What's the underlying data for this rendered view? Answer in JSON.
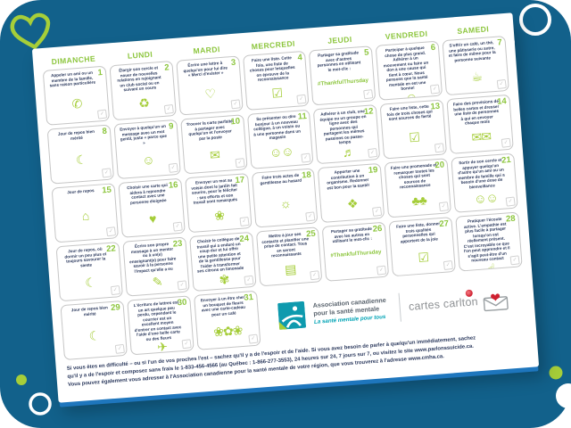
{
  "page": {
    "background_color": "#12618b",
    "accent_green": "#a6ce39",
    "card_edge_blue": "#1e76bd",
    "text_navy": "#2c3a5e",
    "brand_teal": "#00a3b5",
    "brand_red": "#cf2030"
  },
  "calendar": {
    "day_headers": [
      "DIMANCHE",
      "LUNDI",
      "MARDI",
      "MERCREDI",
      "JEUDI",
      "VENDREDI",
      "SAMEDI"
    ],
    "days": [
      {
        "num": "1",
        "text": "Appeler un ami ou un membre de la famille, sans raison particulière",
        "icon": "✆",
        "icon_name": "phone-heart-icon"
      },
      {
        "num": "2",
        "text": "Élargir son cercle et nouer de nouvelles relations en rejoignant un club social ou en suivant un cours",
        "icon": "♻",
        "icon_name": "people-circle-icon"
      },
      {
        "num": "3",
        "text": "Écrire une lettre à quelqu'un pour lui dire « Merci d'exister »",
        "icon": "♡",
        "icon_name": "hand-heart-icon"
      },
      {
        "num": "4",
        "text": "Faire une liste. Cette fois, une liste de choses pour lesquelles on éprouve de la reconnaissance",
        "icon": "☑",
        "icon_name": "clipboard-check-icon"
      },
      {
        "num": "5",
        "text": "Partager sa gratitude avec d'autres personnes en utilisant le mot-clic :",
        "hashtag": "#ThankfulThursday",
        "icon": "",
        "icon_name": "hashtag-label"
      },
      {
        "num": "6",
        "text": "Participer à quelque chose de plus grand. Adhérer à un mouvement ou faire un don à une cause qui tient à cœur. Nous pensons que la santé mentale en est une bonne!",
        "icon": "☺",
        "icon_name": "friends-support-icon"
      },
      {
        "num": "7",
        "text": "S'offrir un café, un thé, une pâtisserie ou autre, et faire de même pour la personne suivante",
        "icon": "☕",
        "icon_name": "coffee-cup-icon"
      },
      {
        "num": "8",
        "text": "Jour de repos bien mérité",
        "icon": "☾",
        "icon_name": "resting-person-icon"
      },
      {
        "num": "9",
        "text": "Envoyer à quelqu'un un message avec un mot gentil, juste « parce que »",
        "icon": "☺",
        "icon_name": "phone-smiley-icon"
      },
      {
        "num": "10",
        "text": "Trouver la carte parfaite à partager avec quelqu'un et l'envoyer par la poste",
        "icon": "✉",
        "icon_name": "envelope-heart-icon"
      },
      {
        "num": "11",
        "text": "Se présenter ou dire bonjour à un nouveau collègue, à un voisin ou à une personne dans un magasin",
        "icon": "☺☺",
        "icon_name": "greeting-people-icon"
      },
      {
        "num": "12",
        "text": "Adhérer à un club, une équipe ou un groupe en ligne avec des personnes qui partagent les mêmes passions ou passe-temps",
        "icon": "♬",
        "icon_name": "guitar-icon"
      },
      {
        "num": "13",
        "text": "Faire une liste, cette fois de trois choses qui sont sources de fierté",
        "icon": "☑",
        "icon_name": "checklist-icon"
      },
      {
        "num": "14",
        "text": "Faire des provisions de belles cartes et dresser une liste de personnes à qui en envoyer chaque mois",
        "icon": "✉✉",
        "icon_name": "envelopes-stack-icon"
      },
      {
        "num": "15",
        "text": "Jour de repos",
        "icon": "⌂",
        "icon_name": "sofa-icon"
      },
      {
        "num": "16",
        "text": "Choisir une carte qui aidera à reprendre contact avec une personne éloignée",
        "icon": "♥",
        "icon_name": "greeting-card-icon"
      },
      {
        "num": "17",
        "text": "Envoyer un mot au voisin dont le jardin fait sourire, pour le féliciter : ses efforts et son travail sont remarqués",
        "icon": "❀",
        "icon_name": "watering-can-icon"
      },
      {
        "num": "18",
        "text": "Faire trois actes de gentillesse au hasard",
        "icon": "☼",
        "icon_name": "cheering-person-icon"
      },
      {
        "num": "19",
        "text": "Apporter une contribution à un organisme. Redonner est bon pour la santé!",
        "icon": "❖",
        "icon_name": "gift-box-icon"
      },
      {
        "num": "20",
        "text": "Faire une promenade et remarquer toutes les choses qui sont sources de reconnaissance",
        "icon": "♣♣",
        "icon_name": "trees-icon"
      },
      {
        "num": "21",
        "text": "Sortir de son cercle et appuyer quelqu'un d'autre qu'un ami ou un membre de famille qui a besoin d'une dose de bienveillance",
        "icon": "☺☺",
        "icon_name": "helping-people-icon"
      },
      {
        "num": "22",
        "text": "Jour de repos, où dormir un peu plus et toujours savourer la sieste",
        "icon": "☾",
        "icon_name": "lying-person-icon"
      },
      {
        "num": "23",
        "text": "Écrire son propre message à un mentor ou à un(e) enseignant(e) pour faire savoir à la personne l'impact qu'elle a eu",
        "icon": "✎",
        "icon_name": "writing-person-icon"
      },
      {
        "num": "24",
        "text": "Choisir le collègue de travail qui a enduré un coup dur et lui offrir une petite attention et de la gentillesse pour l'aider à transformer ses citrons en limonade",
        "icon": "✾",
        "icon_name": "lemons-icon"
      },
      {
        "num": "25",
        "text": "Mettre à jour ses contacts et planifier une prise de contact. Tous en seront reconnaissants",
        "icon": "▤",
        "icon_name": "address-book-icon"
      },
      {
        "num": "26",
        "text": "Partager sa gratitude avec les autres en utilisant le mot-clic :",
        "hashtag": "#ThankfulThursday",
        "icon": "",
        "icon_name": "hashtag-label"
      },
      {
        "num": "27",
        "text": "Faire une liste, donner trois qualités personnelles qui apportent de la joie",
        "icon": "☑",
        "icon_name": "checklist-pencil-icon"
      },
      {
        "num": "28",
        "text": "Pratiquer l'écoute active. L'empathie est plus facile à partager lorsqu'on est réellement présent. C'est incroyable ce que l'on peut apprendre et il s'agit peut-être d'un nouveau contact",
        "icon": "☝",
        "icon_name": "listening-icon"
      },
      {
        "num": "29",
        "text": "Jour de repos bien mérité",
        "icon": "☾",
        "icon_name": "relaxing-person-icon"
      },
      {
        "num": "30",
        "text": "L'écriture de lettres est un art quelque peu perdu, cependant le courrier est un excellent moyen d'entrer en contact avec l'aide d'une belle carte ou des fleurs",
        "icon": "✈",
        "icon_name": "paper-plane-icon"
      },
      {
        "num": "31",
        "text": "Envoyer à un être cher un bouquet de fleurs avec une carte-cadeau pour un café",
        "icon": "❀✿❀",
        "icon_name": "flowers-icon"
      }
    ],
    "logos": {
      "cmha_name": "Association canadienne pour la santé mentale",
      "cmha_tagline": "La santé mentale pour tous",
      "carlton_label": "cartes carlton"
    },
    "disclaimer": [
      "Si vous êtes en difficulté – ou si l'un de vos proches l'est – sachez qu'il y a de l'espoir et de l'aide. Si vous avez besoin de parler à quelqu'un immédiatement, sachez",
      "qu'il y a de l'espoir et composez sans frais le 1-833-456-4566 (au Québec : 1-866-277-3553), 24 heures sur 24, 7 jours sur 7, ou visitez le site www.parlonssuicide.ca.",
      "Vous pouvez également vous adresser à l'Association canadienne pour la santé mentale de votre région, que vous trouverez à l'adresse www.cmha.ca."
    ]
  }
}
